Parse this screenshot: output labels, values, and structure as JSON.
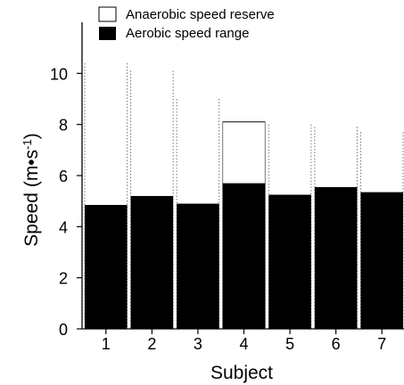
{
  "chart_data": {
    "type": "bar",
    "xlabel": "Subject",
    "ylabel": "Speed (m•s",
    "ylabel_superscript": "-1",
    "ylabel_close": ")",
    "ylim": [
      0,
      12
    ],
    "yticks": [
      "0",
      "2",
      "4",
      "6",
      "8",
      "10"
    ],
    "categories": [
      "1",
      "2",
      "3",
      "4",
      "5",
      "6",
      "7"
    ],
    "legend_position": "top-left",
    "series": [
      {
        "name": "Aerobic speed range",
        "color": "#000000",
        "values": [
          4.85,
          5.2,
          4.9,
          5.7,
          5.25,
          5.55,
          5.35
        ]
      },
      {
        "name": "Anaerobic speed reserve",
        "color": "#ffffff",
        "values": [
          10.4,
          10.1,
          9.0,
          8.1,
          8.0,
          7.9,
          7.7
        ]
      }
    ]
  }
}
